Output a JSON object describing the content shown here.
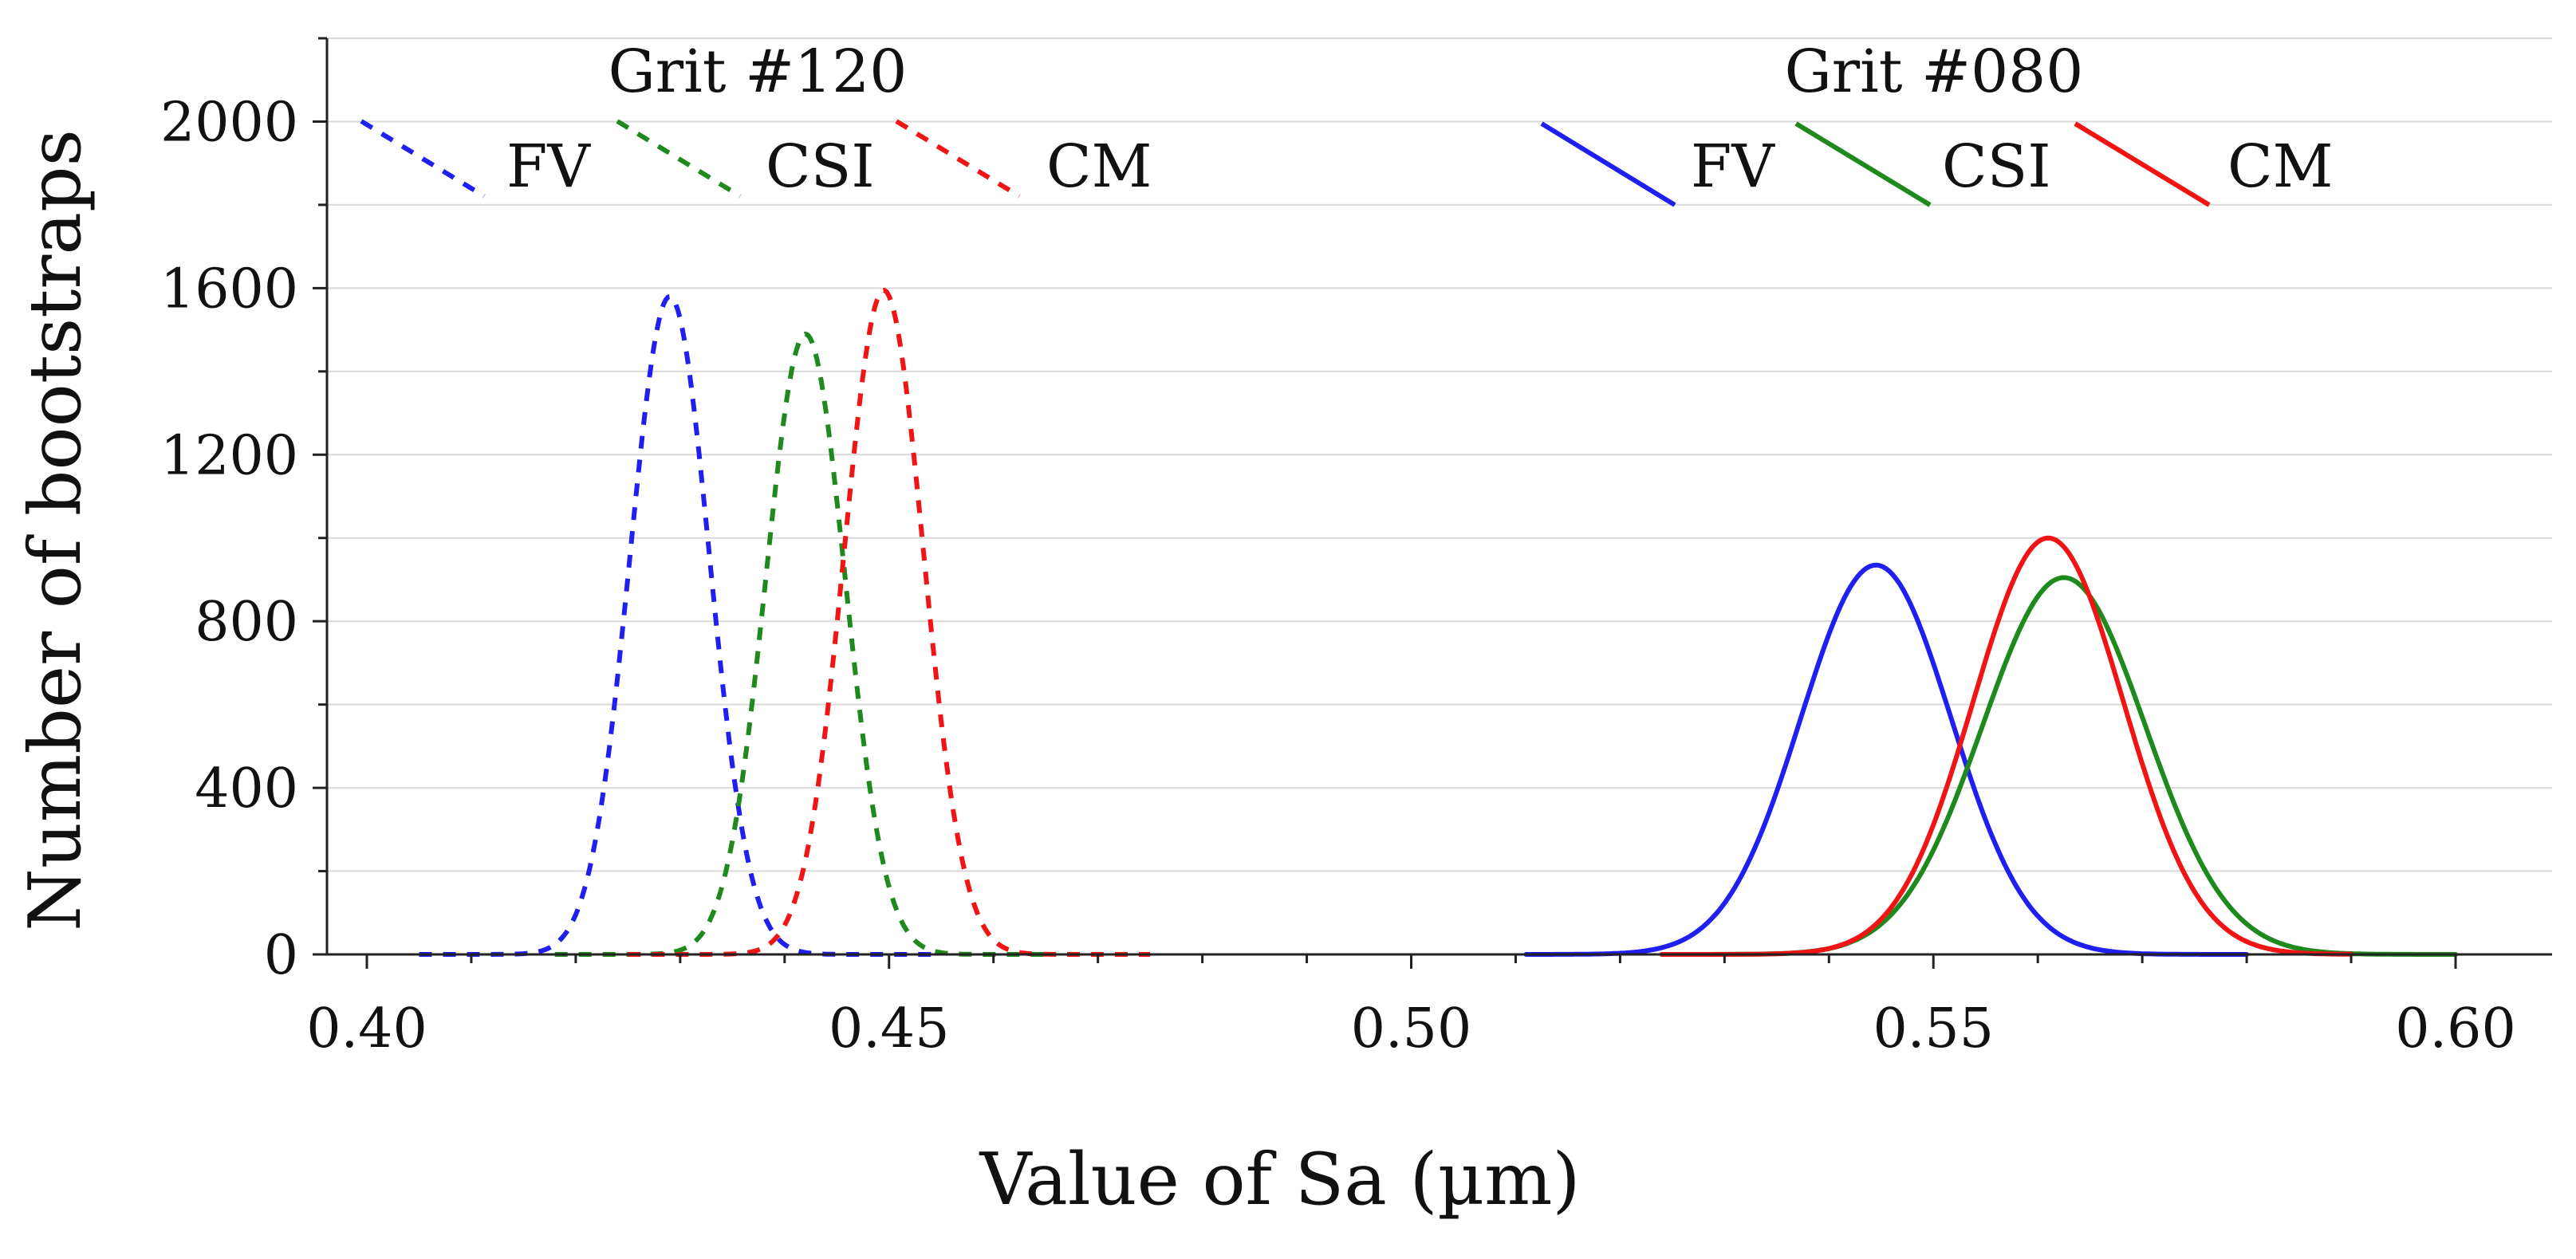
{
  "chart_data": {
    "type": "line",
    "title": "",
    "xlabel": "Value of Sa (µm)",
    "ylabel": "Number of bootstraps",
    "xlim": [
      0.39,
      0.61
    ],
    "ylim": [
      0,
      2200
    ],
    "xticks": [
      0.4,
      0.45,
      0.5,
      0.55,
      0.6
    ],
    "xtick_labels": [
      "0.40",
      "0.45",
      "0.50",
      "0.55",
      "0.60"
    ],
    "xminor_step": 0.01,
    "yticks": [
      0,
      400,
      800,
      1200,
      1600,
      2000
    ],
    "ytick_labels": [
      "0",
      "400",
      "800",
      "1200",
      "1600",
      "2000"
    ],
    "yminor_step": 200,
    "grid": "horizontal",
    "legend": [
      {
        "group": "Grit #120",
        "entries": [
          "FV",
          "CSI",
          "CM"
        ]
      },
      {
        "group": "Grit #080",
        "entries": [
          "FV",
          "CSI",
          "CM"
        ]
      }
    ],
    "series": [
      {
        "name": "FV",
        "group": "Grit #120",
        "color": "#1f1fef",
        "style": "dashed",
        "mean": 0.429,
        "sd": 0.0038,
        "peak": 1580,
        "x_range": [
          0.405,
          0.455
        ]
      },
      {
        "name": "CSI",
        "group": "Grit #120",
        "color": "#1e8a1e",
        "style": "dashed",
        "mean": 0.442,
        "sd": 0.0038,
        "peak": 1490,
        "x_range": [
          0.418,
          0.466
        ]
      },
      {
        "name": "CM",
        "group": "Grit #120",
        "color": "#f01414",
        "style": "dashed",
        "mean": 0.4495,
        "sd": 0.0038,
        "peak": 1595,
        "x_range": [
          0.425,
          0.475
        ]
      },
      {
        "name": "FV",
        "group": "Grit #080",
        "color": "#1f1fef",
        "style": "solid",
        "mean": 0.5445,
        "sd": 0.0072,
        "peak": 935,
        "x_range": [
          0.511,
          0.58
        ]
      },
      {
        "name": "CSI",
        "group": "Grit #080",
        "color": "#1e8a1e",
        "style": "solid",
        "mean": 0.5625,
        "sd": 0.0078,
        "peak": 905,
        "x_range": [
          0.524,
          0.6
        ]
      },
      {
        "name": "CM",
        "group": "Grit #080",
        "color": "#f01414",
        "style": "solid",
        "mean": 0.561,
        "sd": 0.0072,
        "peak": 1000,
        "x_range": [
          0.524,
          0.59
        ]
      }
    ]
  }
}
